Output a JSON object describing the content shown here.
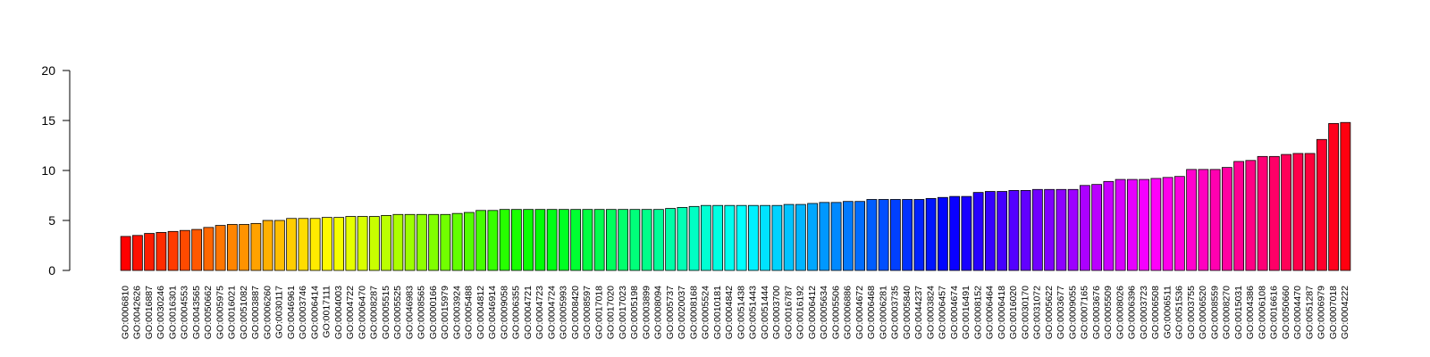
{
  "chart_data": {
    "type": "bar",
    "title": "",
    "xlabel": "",
    "ylabel": "",
    "ylim": [
      0,
      20
    ],
    "yticks": [
      0,
      5,
      10,
      15,
      20
    ],
    "grid": false,
    "legend": "none",
    "color_scheme": "rainbow",
    "categories": [
      "GO:0006810",
      "GO:0042626",
      "GO:0016887",
      "GO:0030246",
      "GO:0016301",
      "GO:0004553",
      "GO:0043565",
      "GO:0050662",
      "GO:0005975",
      "GO:0016021",
      "GO:0051082",
      "GO:0003887",
      "GO:0006260",
      "GO:0030117",
      "GO:0046961",
      "GO:0003746",
      "GO:0006414",
      "GO:0017111",
      "GO:0004003",
      "GO:0004722",
      "GO:0006470",
      "GO:0008287",
      "GO:0005515",
      "GO:0005525",
      "GO:0046983",
      "GO:0008565",
      "GO:0000166",
      "GO:0015979",
      "GO:0003924",
      "GO:0005488",
      "GO:0004812",
      "GO:0046914",
      "GO:0009058",
      "GO:0006355",
      "GO:0004721",
      "GO:0004723",
      "GO:0004724",
      "GO:0005993",
      "GO:0008420",
      "GO:0008597",
      "GO:0017018",
      "GO:0017020",
      "GO:0017023",
      "GO:0005198",
      "GO:0003899",
      "GO:0008094",
      "GO:0005737",
      "GO:0020037",
      "GO:0008168",
      "GO:0005524",
      "GO:0010181",
      "GO:0004842",
      "GO:0051438",
      "GO:0051443",
      "GO:0051444",
      "GO:0003700",
      "GO:0016787",
      "GO:0016192",
      "GO:0006412",
      "GO:0005634",
      "GO:0005506",
      "GO:0006886",
      "GO:0004672",
      "GO:0006468",
      "GO:0006281",
      "GO:0003735",
      "GO:0005840",
      "GO:0044237",
      "GO:0003824",
      "GO:0006457",
      "GO:0004674",
      "GO:0016491",
      "GO:0008152",
      "GO:0006464",
      "GO:0006418",
      "GO:0016020",
      "GO:0030170",
      "GO:0031072",
      "GO:0005622",
      "GO:0003677",
      "GO:0009055",
      "GO:0007165",
      "GO:0003676",
      "GO:0005509",
      "GO:0008026",
      "GO:0006396",
      "GO:0003723",
      "GO:0006508",
      "GO:0006511",
      "GO:0051536",
      "GO:0003755",
      "GO:0006520",
      "GO:0008559",
      "GO:0008270",
      "GO:0015031",
      "GO:0004386",
      "GO:0006108",
      "GO:0016616",
      "GO:0050660",
      "GO:0004470",
      "GO:0051287",
      "GO:0006979",
      "GO:0007018",
      "GO:0004222"
    ],
    "values": [
      3.4,
      3.5,
      3.7,
      3.8,
      3.9,
      4.0,
      4.1,
      4.3,
      4.5,
      4.6,
      4.6,
      4.7,
      5.0,
      5.0,
      5.2,
      5.2,
      5.2,
      5.3,
      5.3,
      5.4,
      5.4,
      5.4,
      5.5,
      5.6,
      5.6,
      5.6,
      5.6,
      5.6,
      5.7,
      5.8,
      6.0,
      6.0,
      6.1,
      6.1,
      6.1,
      6.1,
      6.1,
      6.1,
      6.1,
      6.1,
      6.1,
      6.1,
      6.1,
      6.1,
      6.1,
      6.1,
      6.2,
      6.3,
      6.4,
      6.5,
      6.5,
      6.5,
      6.5,
      6.5,
      6.5,
      6.5,
      6.6,
      6.6,
      6.7,
      6.8,
      6.8,
      6.9,
      6.9,
      7.1,
      7.1,
      7.1,
      7.1,
      7.1,
      7.2,
      7.3,
      7.4,
      7.4,
      7.8,
      7.9,
      7.9,
      8.0,
      8.0,
      8.1,
      8.1,
      8.1,
      8.1,
      8.5,
      8.6,
      8.9,
      9.1,
      9.1,
      9.1,
      9.2,
      9.3,
      9.4,
      10.1,
      10.1,
      10.1,
      10.3,
      10.9,
      11.0,
      11.4,
      11.4,
      11.6,
      11.7,
      11.7,
      13.1,
      14.7,
      14.8
    ]
  }
}
